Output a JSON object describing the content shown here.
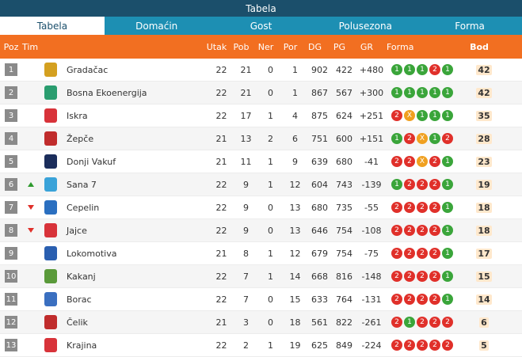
{
  "title": "Tabela",
  "tabs": [
    "Tabela",
    "Domaćin",
    "Gost",
    "Polusezona",
    "Forma"
  ],
  "headers": {
    "poz": "Poz",
    "tim": "Tim",
    "utak": "Utak",
    "pob": "Pob",
    "ner": "Ner",
    "por": "Por",
    "dg": "DG",
    "pg": "PG",
    "gr": "GR",
    "forma": "Forma",
    "bod": "Bod"
  },
  "rows": [
    {
      "pos": "1",
      "arrow": "",
      "team": "Gradačac",
      "utak": "22",
      "pob": "21",
      "ner": "0",
      "por": "1",
      "dg": "902",
      "pg": "422",
      "gr": "+480",
      "form": [
        "1",
        "1",
        "1",
        "2",
        "1"
      ],
      "bod": "42",
      "logo": "#d4a020"
    },
    {
      "pos": "2",
      "arrow": "",
      "team": "Bosna Ekoenergija",
      "utak": "22",
      "pob": "21",
      "ner": "0",
      "por": "1",
      "dg": "867",
      "pg": "567",
      "gr": "+300",
      "form": [
        "1",
        "1",
        "1",
        "1",
        "1"
      ],
      "bod": "42",
      "logo": "#2a9d6f"
    },
    {
      "pos": "3",
      "arrow": "",
      "team": "Iskra",
      "utak": "22",
      "pob": "17",
      "ner": "1",
      "por": "4",
      "dg": "875",
      "pg": "624",
      "gr": "+251",
      "form": [
        "2",
        "X",
        "1",
        "1",
        "1"
      ],
      "bod": "35",
      "logo": "#d8333a"
    },
    {
      "pos": "4",
      "arrow": "",
      "team": "Žepče",
      "utak": "21",
      "pob": "13",
      "ner": "2",
      "por": "6",
      "dg": "751",
      "pg": "600",
      "gr": "+151",
      "form": [
        "1",
        "2",
        "X",
        "1",
        "2"
      ],
      "bod": "28",
      "logo": "#c02c2c"
    },
    {
      "pos": "5",
      "arrow": "",
      "team": "Donji Vakuf",
      "utak": "21",
      "pob": "11",
      "ner": "1",
      "por": "9",
      "dg": "639",
      "pg": "680",
      "gr": "-41",
      "form": [
        "2",
        "2",
        "X",
        "2",
        "1"
      ],
      "bod": "23",
      "logo": "#1b2d5b"
    },
    {
      "pos": "6",
      "arrow": "up",
      "team": "Sana 7",
      "utak": "22",
      "pob": "9",
      "ner": "1",
      "por": "12",
      "dg": "604",
      "pg": "743",
      "gr": "-139",
      "form": [
        "1",
        "2",
        "2",
        "2",
        "1"
      ],
      "bod": "19",
      "logo": "#3aa3d9"
    },
    {
      "pos": "7",
      "arrow": "down",
      "team": "Cepelin",
      "utak": "22",
      "pob": "9",
      "ner": "0",
      "por": "13",
      "dg": "680",
      "pg": "735",
      "gr": "-55",
      "form": [
        "2",
        "2",
        "2",
        "2",
        "1"
      ],
      "bod": "18",
      "logo": "#2a6fc0"
    },
    {
      "pos": "8",
      "arrow": "down",
      "team": "Jajce",
      "utak": "22",
      "pob": "9",
      "ner": "0",
      "por": "13",
      "dg": "646",
      "pg": "754",
      "gr": "-108",
      "form": [
        "2",
        "2",
        "2",
        "2",
        "1"
      ],
      "bod": "18",
      "logo": "#d8333a"
    },
    {
      "pos": "9",
      "arrow": "",
      "team": "Lokomotiva",
      "utak": "21",
      "pob": "8",
      "ner": "1",
      "por": "12",
      "dg": "679",
      "pg": "754",
      "gr": "-75",
      "form": [
        "2",
        "2",
        "2",
        "2",
        "1"
      ],
      "bod": "17",
      "logo": "#2a5fb0"
    },
    {
      "pos": "10",
      "arrow": "",
      "team": "Kakanj",
      "utak": "22",
      "pob": "7",
      "ner": "1",
      "por": "14",
      "dg": "668",
      "pg": "816",
      "gr": "-148",
      "form": [
        "2",
        "2",
        "2",
        "2",
        "1"
      ],
      "bod": "15",
      "logo": "#5a9a3a"
    },
    {
      "pos": "11",
      "arrow": "",
      "team": "Borac",
      "utak": "22",
      "pob": "7",
      "ner": "0",
      "por": "15",
      "dg": "633",
      "pg": "764",
      "gr": "-131",
      "form": [
        "2",
        "2",
        "2",
        "2",
        "1"
      ],
      "bod": "14",
      "logo": "#3a6fc0"
    },
    {
      "pos": "12",
      "arrow": "",
      "team": "Čelik",
      "utak": "21",
      "pob": "3",
      "ner": "0",
      "por": "18",
      "dg": "561",
      "pg": "822",
      "gr": "-261",
      "form": [
        "2",
        "1",
        "2",
        "2",
        "2"
      ],
      "bod": "6",
      "logo": "#c02c2c"
    },
    {
      "pos": "13",
      "arrow": "",
      "team": "Krajina",
      "utak": "22",
      "pob": "2",
      "ner": "1",
      "por": "19",
      "dg": "625",
      "pg": "849",
      "gr": "-224",
      "form": [
        "2",
        "2",
        "2",
        "2",
        "2"
      ],
      "bod": "5",
      "logo": "#d8333a"
    }
  ]
}
